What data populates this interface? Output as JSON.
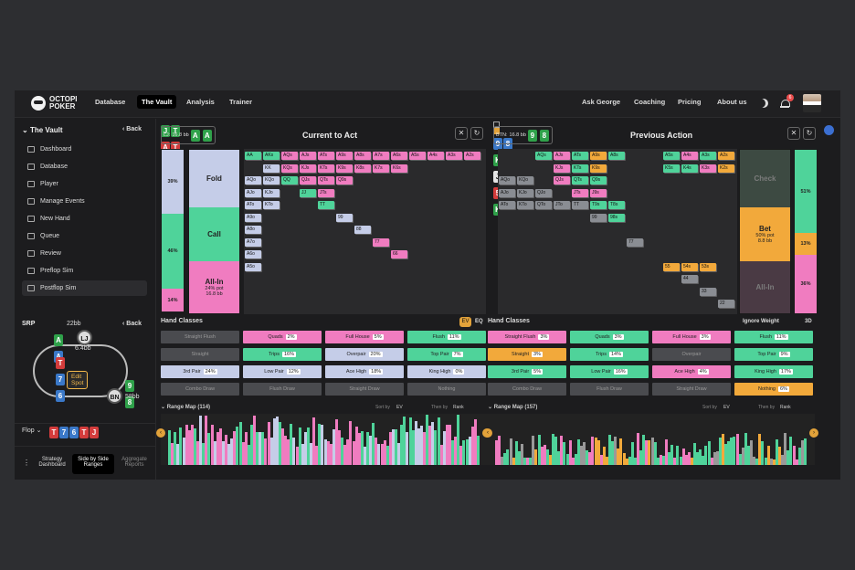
{
  "nav": {
    "logo_line1": "OCTOPI",
    "logo_line2": "POKER",
    "items": [
      "Database",
      "The Vault",
      "Analysis",
      "Trainer"
    ],
    "right": [
      "Ask George",
      "Coaching",
      "Pricing",
      "About us"
    ],
    "notif_count": "6"
  },
  "sidebar": {
    "title": "The Vault",
    "back": "Back",
    "items": [
      "Dashboard",
      "Database",
      "Player",
      "Manage Events",
      "New Hand",
      "Queue",
      "Review",
      "Preflop Sim",
      "Postflop Sim"
    ],
    "srp": "SRP",
    "back2": "Back",
    "lj_stack": "22bb",
    "pot": "6.4bb",
    "bn_stack": "58bb",
    "edit": "Edit Spot",
    "lj": "LJ",
    "bn": "BN",
    "flop_label": "Flop",
    "flop_cards": [
      "T",
      "7",
      "6",
      "T",
      "J"
    ],
    "tools": [
      "Strategy Dashboard",
      "Side by Side Ranges",
      "Aggregate Reports"
    ]
  },
  "left": {
    "title": "Current to Act",
    "pos": "LJ:",
    "stack": "16.8 bb",
    "cards": [
      "A",
      "A"
    ],
    "bar_pcts": [
      "39%",
      "46%",
      "14%"
    ],
    "actions": [
      "Fold",
      "Call",
      "All-In"
    ],
    "allin_sub": "24% pot",
    "allin_bb": "16.8 bb",
    "hand_classes": "Hand Classes",
    "ev": "EV",
    "eq": "EQ",
    "classes": [
      [
        "Straight Flush",
        ""
      ],
      [
        "Quads",
        "2%"
      ],
      [
        "Full House",
        "5%"
      ],
      [
        "Flush",
        "11%"
      ],
      [
        "Straight",
        ""
      ],
      [
        "Trips",
        "16%"
      ],
      [
        "Overpair",
        "20%"
      ],
      [
        "Top Pair",
        "7%"
      ],
      [
        "3rd Pair",
        "24%"
      ],
      [
        "Low Pair",
        "12%"
      ],
      [
        "Ace High",
        "18%"
      ],
      [
        "King High",
        "0%"
      ],
      [
        "Combo Draw",
        ""
      ],
      [
        "Flush Draw",
        ""
      ],
      [
        "Straight Draw",
        ""
      ],
      [
        "Nothing",
        ""
      ]
    ],
    "range_map": "Range Map (114)",
    "sort": "Sort by",
    "sortv": "EV",
    "then": "Then by",
    "thenv": "Rank",
    "foot": [
      [
        "J",
        "T"
      ],
      [
        "A",
        "T"
      ],
      [
        "A",
        "A"
      ],
      [
        "A",
        "Q"
      ],
      [
        "K",
        "K"
      ]
    ]
  },
  "right": {
    "title": "Previous Action",
    "pos": "BTN:",
    "stack": "16.8 bb",
    "cards": [
      "9",
      "8"
    ],
    "bar_pcts": [
      "51%",
      "13%",
      "36%"
    ],
    "actions": [
      "Check",
      "Bet",
      "All-In"
    ],
    "bet_sub": "50% pot",
    "bet_bb": "8.8 bb",
    "hand_classes": "Hand Classes",
    "ignore": "Ignore Weight",
    "threed": "3D",
    "classes": [
      [
        "Straight Flush",
        "3%"
      ],
      [
        "Quads",
        "3%"
      ],
      [
        "Full House",
        "3%"
      ],
      [
        "Flush",
        "11%"
      ],
      [
        "Straight",
        "3%"
      ],
      [
        "Trips",
        "14%"
      ],
      [
        "Overpair",
        ""
      ],
      [
        "Top Pair",
        "9%"
      ],
      [
        "3rd Pair",
        "5%"
      ],
      [
        "Low Pair",
        "16%"
      ],
      [
        "Ace High",
        "4%"
      ],
      [
        "King High",
        "17%"
      ],
      [
        "Combo Draw",
        ""
      ],
      [
        "Flush Draw",
        ""
      ],
      [
        "Straight Draw",
        ""
      ],
      [
        "Nothing",
        "6%"
      ]
    ],
    "range_map": "Range Map (157)",
    "sort": "Sort by",
    "sortv": "EV",
    "then": "Then by",
    "thenv": "Rank",
    "foot": [
      [
        "9",
        "8"
      ],
      [
        "K",
        "T"
      ],
      [
        "J",
        "8"
      ],
      [
        "5",
        "4"
      ],
      [
        "K",
        "9"
      ]
    ]
  },
  "grid_left": [
    "AA",
    "AKs",
    "AQs",
    "AJs",
    "ATs",
    "A9s",
    "A8s",
    "A7s",
    "A6s",
    "A5s",
    "A4s",
    "A3s",
    "A2s",
    "KK",
    "KQs",
    "KJs",
    "KTs",
    "K9s",
    "K8s",
    "K7s",
    "K6s",
    "AQo",
    "KQo",
    "QQ",
    "QJs",
    "QTs",
    "Q9s",
    "AJo",
    "KJo",
    "JJ",
    "JTs",
    "ATo",
    "KTo",
    "TT",
    "A9o",
    "99",
    "A8o",
    "88",
    "A7o",
    "77",
    "A6o",
    "66",
    "A5o"
  ],
  "grid_right": [
    "AQs",
    "AJs",
    "ATs",
    "A9s",
    "A8s",
    "A5s",
    "A4s",
    "A3s",
    "A2s",
    "KJs",
    "KTs",
    "K9s",
    "K5s",
    "K4s",
    "K3s",
    "K2s",
    "AQo",
    "KQo",
    "QJs",
    "QTs",
    "Q9s",
    "AJo",
    "KJo",
    "QJo",
    "JTs",
    "J9s",
    "ATo",
    "KTo",
    "QTo",
    "JTo",
    "TT",
    "T9s",
    "T8s",
    "99",
    "98s",
    "77",
    "55",
    "54s",
    "53s",
    "44",
    "33",
    "22"
  ]
}
